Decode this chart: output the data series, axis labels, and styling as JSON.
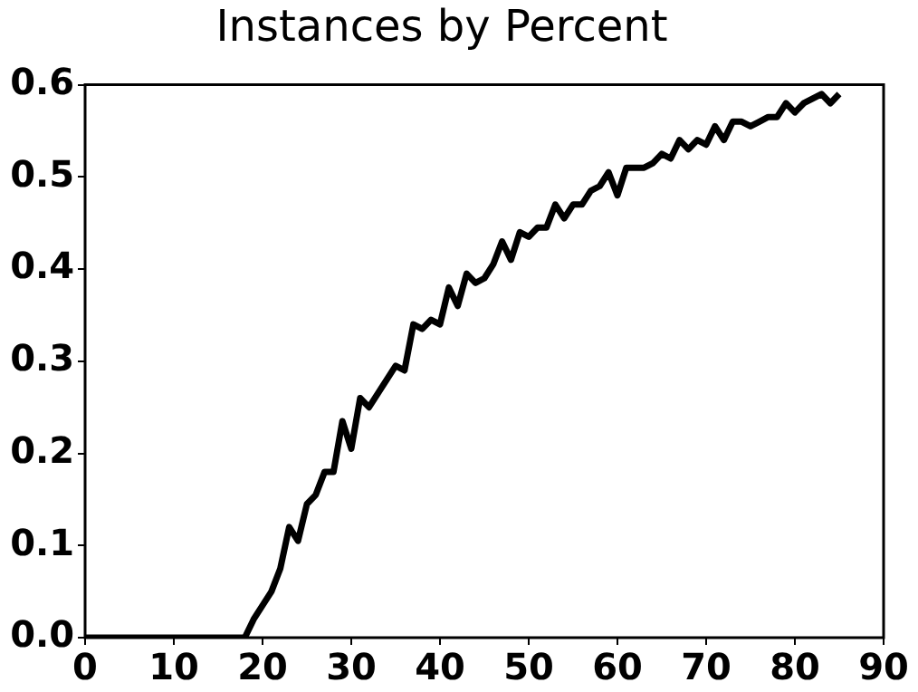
{
  "chart_data": {
    "type": "line",
    "title": "Instances by Percent",
    "x": [
      0,
      1,
      2,
      3,
      4,
      5,
      6,
      7,
      8,
      9,
      10,
      11,
      12,
      13,
      14,
      15,
      16,
      17,
      18,
      19,
      20,
      21,
      22,
      23,
      24,
      25,
      26,
      27,
      28,
      29,
      30,
      31,
      32,
      33,
      34,
      35,
      36,
      37,
      38,
      39,
      40,
      41,
      42,
      43,
      44,
      45,
      46,
      47,
      48,
      49,
      50,
      51,
      52,
      53,
      54,
      55,
      56,
      57,
      58,
      59,
      60,
      61,
      62,
      63,
      64,
      65,
      66,
      67,
      68,
      69,
      70,
      71,
      72,
      73,
      74,
      75,
      76,
      77,
      78,
      79,
      80,
      81,
      82,
      83,
      84,
      85
    ],
    "series": [
      {
        "color": "#000000",
        "values": [
          0,
          0,
          0,
          0,
          0,
          0,
          0,
          0,
          0,
          0,
          0,
          0,
          0,
          0,
          0,
          0,
          0,
          0,
          0,
          0.02,
          0.035,
          0.05,
          0.075,
          0.12,
          0.105,
          0.145,
          0.155,
          0.18,
          0.18,
          0.235,
          0.205,
          0.26,
          0.25,
          0.265,
          0.28,
          0.295,
          0.29,
          0.34,
          0.335,
          0.345,
          0.34,
          0.38,
          0.36,
          0.395,
          0.385,
          0.39,
          0.405,
          0.43,
          0.41,
          0.44,
          0.435,
          0.445,
          0.445,
          0.47,
          0.455,
          0.47,
          0.47,
          0.485,
          0.49,
          0.505,
          0.48,
          0.51,
          0.51,
          0.51,
          0.515,
          0.525,
          0.52,
          0.54,
          0.53,
          0.54,
          0.535,
          0.555,
          0.54,
          0.56,
          0.56,
          0.555,
          0.56,
          0.565,
          0.565,
          0.58,
          0.57,
          0.58,
          0.585,
          0.59,
          0.58,
          0.59
        ]
      }
    ],
    "xlim": [
      0,
      90
    ],
    "xticks": [
      0,
      10,
      20,
      30,
      40,
      50,
      60,
      70,
      80,
      90
    ],
    "ylim": [
      0,
      0.6
    ],
    "yticks": [
      {
        "value": 0,
        "label": "0.0"
      },
      {
        "value": 0.1,
        "label": "0.1"
      },
      {
        "value": 0.2,
        "label": "0.2"
      },
      {
        "value": 0.3,
        "label": "0.3"
      },
      {
        "value": 0.4,
        "label": "0.4"
      },
      {
        "value": 0.5,
        "label": "0.5"
      },
      {
        "value": 0.6,
        "label": "0.6"
      }
    ],
    "grid": false,
    "legend": false,
    "marker": "none",
    "line_style": "solid"
  }
}
